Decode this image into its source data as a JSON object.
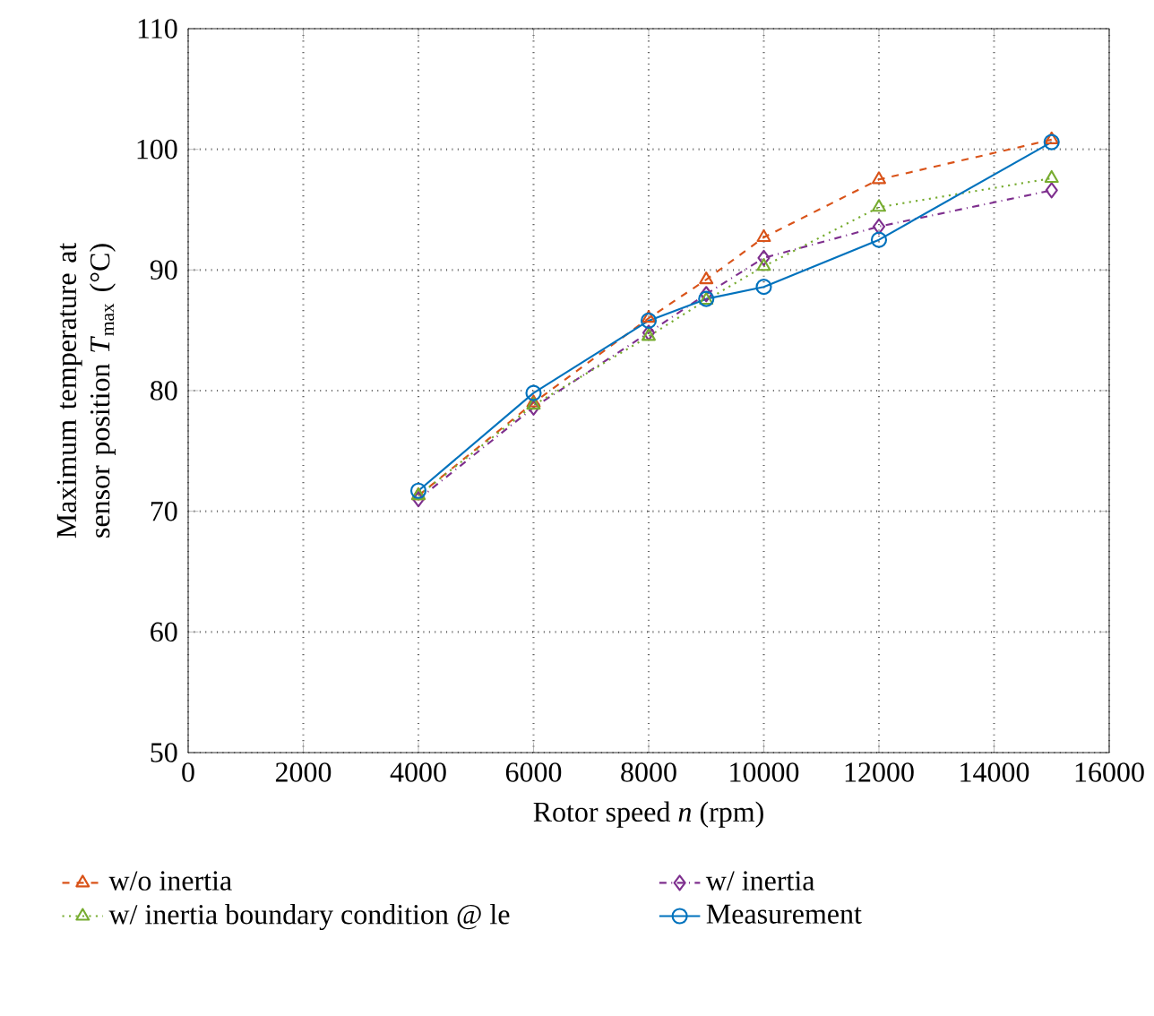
{
  "chart_data": {
    "type": "line",
    "xlabel": "Rotor speed *n* (rpm)",
    "ylabel": "Maximum temperature at sensor position *T*$_{max}$ (°C)",
    "x": [
      4000,
      6000,
      8000,
      9000,
      10000,
      12000,
      15000
    ],
    "series": [
      {
        "name": "w/o inertia",
        "color": "#d95319",
        "line_style": "dashed",
        "marker": "triangle down",
        "values": [
          71.3,
          79.0,
          86.0,
          89.2,
          92.7,
          97.5,
          100.8
        ]
      },
      {
        "name": "w/ inertia",
        "color": "#7e2f8e",
        "line_style": "dashdot",
        "marker": "diamond",
        "values": [
          71.0,
          78.6,
          84.8,
          88.0,
          91.0,
          93.6,
          96.6
        ]
      },
      {
        "name": "w/ inertia boundary condition @ le",
        "color": "#77ac30",
        "line_style": "dotted",
        "marker": "triangle",
        "values": [
          71.3,
          78.8,
          84.5,
          87.5,
          90.3,
          95.2,
          97.6
        ]
      },
      {
        "name": "Measurement",
        "color": "#0072bd",
        "line_style": "solid",
        "marker": "circle",
        "values": [
          71.7,
          79.8,
          85.8,
          87.6,
          88.6,
          92.5,
          100.6
        ]
      }
    ],
    "xlim": [
      0,
      16000
    ],
    "ylim": [
      50,
      110
    ],
    "xticks": [
      0,
      2000,
      4000,
      6000,
      8000,
      10000,
      12000,
      14000,
      16000
    ],
    "yticks": [
      50,
      60,
      70,
      80,
      90,
      100,
      110
    ],
    "grid": true,
    "legend": "bottom"
  }
}
